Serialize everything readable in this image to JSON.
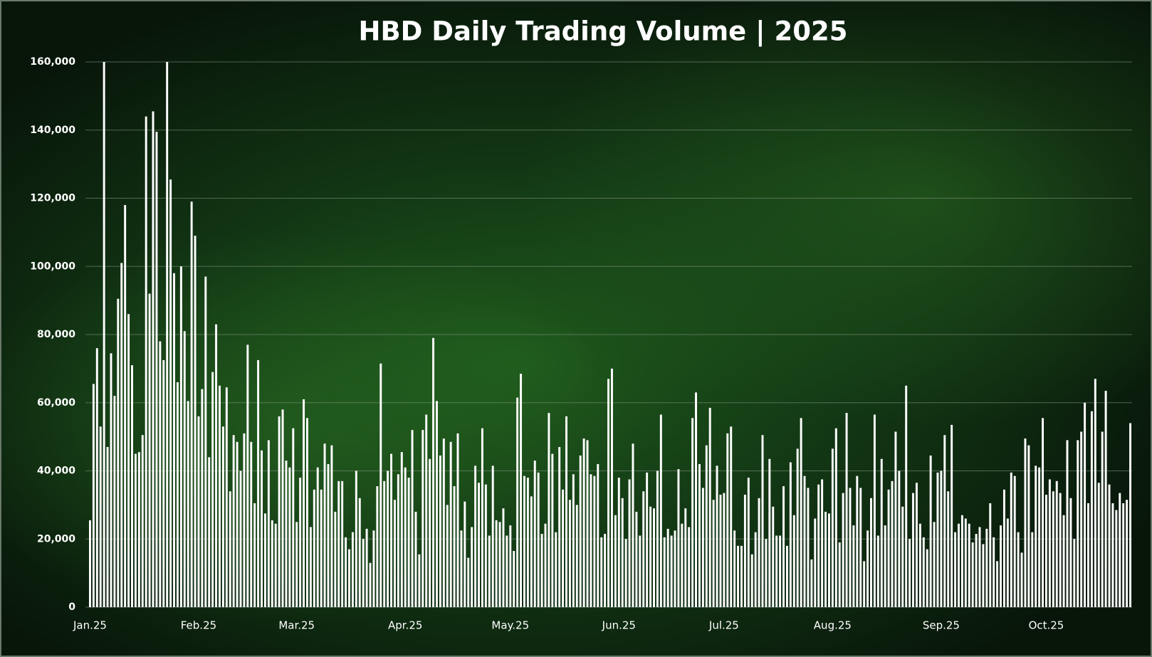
{
  "chart_data": {
    "type": "bar",
    "title": "HBD Daily Trading Volume | 2025",
    "color": "#ffffff",
    "grid": true,
    "ylim": [
      0,
      160000
    ],
    "yticks": [
      0,
      {
        "value": 20000,
        "label": "20,000"
      },
      {
        "value": 40000,
        "label": "40,000"
      },
      {
        "value": 60000,
        "label": "60,000"
      },
      {
        "value": 80000,
        "label": "80,000"
      },
      {
        "value": 100000,
        "label": "100,000"
      },
      {
        "value": 120000,
        "label": "120,000"
      },
      {
        "value": 140000,
        "label": "140,000"
      },
      {
        "value": 160000,
        "label": "160,000"
      }
    ],
    "categories": [
      "Jan.25",
      null,
      null,
      null,
      null,
      null,
      null,
      null,
      null,
      null,
      null,
      null,
      null,
      null,
      null,
      null,
      null,
      null,
      null,
      null,
      null,
      null,
      null,
      null,
      null,
      null,
      null,
      null,
      null,
      null,
      null,
      "Feb.25",
      null,
      null,
      null,
      null,
      null,
      null,
      null,
      null,
      null,
      null,
      null,
      null,
      null,
      null,
      null,
      null,
      null,
      null,
      null,
      null,
      null,
      null,
      null,
      null,
      null,
      null,
      null,
      "Mar.25",
      null,
      null,
      null,
      null,
      null,
      null,
      null,
      null,
      null,
      null,
      null,
      null,
      null,
      null,
      null,
      null,
      null,
      null,
      null,
      null,
      null,
      null,
      null,
      null,
      null,
      null,
      null,
      null,
      null,
      null,
      "Apr.25",
      null,
      null,
      null,
      null,
      null,
      null,
      null,
      null,
      null,
      null,
      null,
      null,
      null,
      null,
      null,
      null,
      null,
      null,
      null,
      null,
      null,
      null,
      null,
      null,
      null,
      null,
      null,
      null,
      null,
      "May.25",
      null,
      null,
      null,
      null,
      null,
      null,
      null,
      null,
      null,
      null,
      null,
      null,
      null,
      null,
      null,
      null,
      null,
      null,
      null,
      null,
      null,
      null,
      null,
      null,
      null,
      null,
      null,
      null,
      null,
      null,
      "Jun.25",
      null,
      null,
      null,
      null,
      null,
      null,
      null,
      null,
      null,
      null,
      null,
      null,
      null,
      null,
      null,
      null,
      null,
      null,
      null,
      null,
      null,
      null,
      null,
      null,
      null,
      null,
      null,
      null,
      null,
      "Jul.25",
      null,
      null,
      null,
      null,
      null,
      null,
      null,
      null,
      null,
      null,
      null,
      null,
      null,
      null,
      null,
      null,
      null,
      null,
      null,
      null,
      null,
      null,
      null,
      null,
      null,
      null,
      null,
      null,
      null,
      null,
      "Aug.25",
      null,
      null,
      null,
      null,
      null,
      null,
      null,
      null,
      null,
      null,
      null,
      null,
      null,
      null,
      null,
      null,
      null,
      null,
      null,
      null,
      null,
      null,
      null,
      null,
      null,
      null,
      null,
      null,
      null,
      null,
      "Sep.25",
      null,
      null,
      null,
      null,
      null,
      null,
      null,
      null,
      null,
      null,
      null,
      null,
      null,
      null,
      null,
      null,
      null,
      null,
      null,
      null,
      null,
      null,
      null,
      null,
      null,
      null,
      null,
      null,
      null,
      "Oct.25",
      null,
      null,
      null,
      null,
      null,
      null,
      null,
      null,
      null,
      null,
      null,
      null,
      null,
      null,
      null,
      null,
      null,
      null,
      null,
      null,
      null,
      null,
      null,
      null
    ],
    "values": [
      25500,
      65500,
      76000,
      53000,
      160000,
      47000,
      74500,
      62000,
      90500,
      101000,
      118000,
      86000,
      71000,
      45000,
      45500,
      50500,
      144000,
      92000,
      145500,
      139500,
      78000,
      72500,
      160000,
      125500,
      98000,
      66000,
      100000,
      81000,
      60500,
      119000,
      109000,
      56000,
      64000,
      97000,
      44000,
      69000,
      83000,
      65000,
      53000,
      64500,
      34000,
      50500,
      48500,
      40000,
      51000,
      77000,
      48500,
      30500,
      72500,
      46000,
      27500,
      49000,
      25500,
      24500,
      56000,
      58000,
      43000,
      41000,
      52500,
      25000,
      38000,
      61000,
      55500,
      23500,
      34500,
      41000,
      34500,
      48000,
      42000,
      47500,
      28000,
      37000,
      37000,
      20500,
      17000,
      22000,
      40000,
      32000,
      20000,
      23000,
      13000,
      22500,
      35500,
      71500,
      37000,
      40000,
      45000,
      31500,
      39000,
      45500,
      41000,
      38000,
      52000,
      28000,
      15500,
      52000,
      56500,
      43500,
      79000,
      60500,
      44500,
      49500,
      30000,
      48500,
      35500,
      51000,
      22500,
      31000,
      14500,
      23500,
      41500,
      36500,
      52500,
      36000,
      21000,
      41500,
      25500,
      25000,
      29000,
      21000,
      24000,
      16500,
      61500,
      68500,
      38500,
      38000,
      32500,
      43000,
      39500,
      21500,
      24500,
      57000,
      45000,
      22000,
      47000,
      34500,
      56000,
      31500,
      39000,
      30000,
      44500,
      49500,
      49000,
      39000,
      38500,
      42000,
      20500,
      21500,
      67000,
      70000,
      27000,
      38000,
      32000,
      20000,
      37500,
      48000,
      28000,
      21000,
      34000,
      39500,
      29500,
      29000,
      40000,
      56500,
      20500,
      23000,
      21000,
      22500,
      40500,
      24500,
      29000,
      23500,
      55500,
      63000,
      42000,
      35000,
      47500,
      58500,
      31500,
      41500,
      33000,
      33500,
      51000,
      53000,
      22500,
      18000,
      18000,
      33000,
      38000,
      15500,
      22000,
      32000,
      50500,
      20000,
      43500,
      29500,
      21000,
      21000,
      35500,
      18000,
      42500,
      27000,
      46500,
      55500,
      38500,
      35000,
      14000,
      26000,
      36000,
      37500,
      28000,
      27500,
      46500,
      52500,
      19000,
      33500,
      57000,
      35000,
      24000,
      38500,
      35000,
      13500,
      22500,
      32000,
      56500,
      21000,
      43500,
      24000,
      34500,
      37000,
      51500,
      40000,
      29500,
      65000,
      20000,
      33500,
      36500,
      24500,
      20500,
      17000,
      44500,
      25000,
      39500,
      40000,
      50500,
      34000,
      53500,
      22000,
      24500,
      27000,
      26000,
      24500,
      19000,
      21500,
      23500,
      18500,
      23000,
      30500,
      20500,
      13500,
      24000,
      34500,
      26000,
      39500,
      38500,
      22000,
      16000,
      49500,
      47500,
      22000,
      41500,
      41000,
      55500,
      33000,
      37500,
      34000,
      37000,
      33500,
      27000,
      49000,
      32000,
      20000,
      49000,
      51500,
      60000,
      30500,
      57500,
      67000,
      36500,
      51500,
      63500,
      36000,
      30500,
      28500,
      33500,
      30500,
      31500,
      54000
    ]
  }
}
